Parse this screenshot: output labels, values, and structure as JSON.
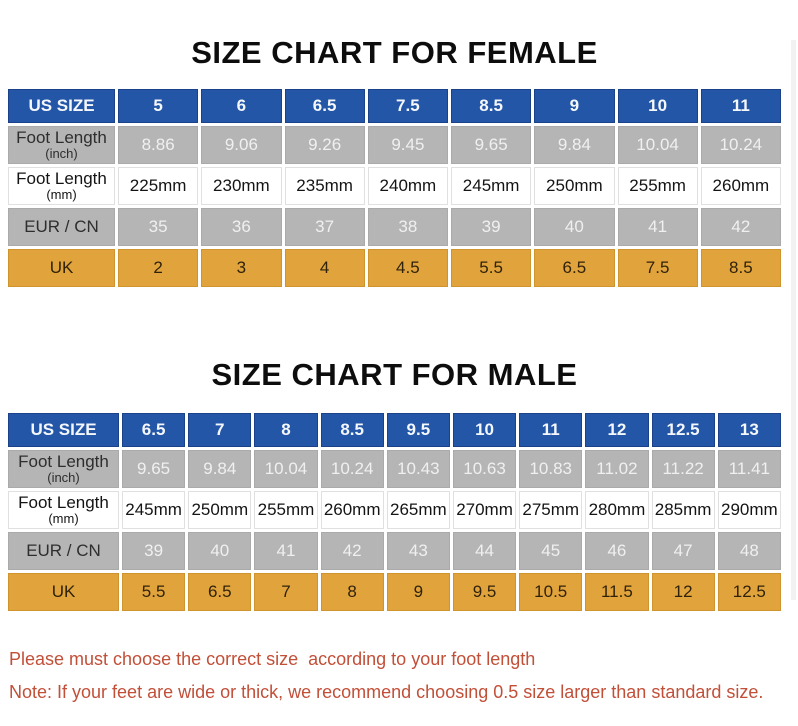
{
  "page": {
    "female_title": "SIZE CHART FOR FEMALE",
    "male_title": "SIZE CHART FOR MALE"
  },
  "colors": {
    "header_blue": "#2356a6",
    "row_gray": "#b5b5b5",
    "row_orange": "#e1a43d",
    "note_red": "#c24f38"
  },
  "tables": [
    {
      "id": "female",
      "header_label": "US SIZE",
      "us_sizes": [
        "5",
        "6",
        "6.5",
        "7.5",
        "8.5",
        "9",
        "10",
        "11"
      ],
      "rows": [
        {
          "label": "Foot Length",
          "sublabel": "(inch)",
          "style": "gray",
          "values": [
            "8.86",
            "9.06",
            "9.26",
            "9.45",
            "9.65",
            "9.84",
            "10.04",
            "10.24"
          ]
        },
        {
          "label": "Foot Length",
          "sublabel": "(mm)",
          "style": "white",
          "values": [
            "225mm",
            "230mm",
            "235mm",
            "240mm",
            "245mm",
            "250mm",
            "255mm",
            "260mm"
          ]
        },
        {
          "label": "EUR / CN",
          "sublabel": "",
          "style": "gray",
          "values": [
            "35",
            "36",
            "37",
            "38",
            "39",
            "40",
            "41",
            "42"
          ]
        },
        {
          "label": "UK",
          "sublabel": "",
          "style": "orange",
          "values": [
            "2",
            "3",
            "4",
            "4.5",
            "5.5",
            "6.5",
            "7.5",
            "8.5"
          ]
        }
      ]
    },
    {
      "id": "male",
      "header_label": "US SIZE",
      "us_sizes": [
        "6.5",
        "7",
        "8",
        "8.5",
        "9.5",
        "10",
        "11",
        "12",
        "12.5",
        "13"
      ],
      "rows": [
        {
          "label": "Foot Length",
          "sublabel": "(inch)",
          "style": "gray",
          "values": [
            "9.65",
            "9.84",
            "10.04",
            "10.24",
            "10.43",
            "10.63",
            "10.83",
            "11.02",
            "11.22",
            "11.41"
          ]
        },
        {
          "label": "Foot Length",
          "sublabel": "(mm)",
          "style": "white",
          "values": [
            "245mm",
            "250mm",
            "255mm",
            "260mm",
            "265mm",
            "270mm",
            "275mm",
            "280mm",
            "285mm",
            "290mm"
          ]
        },
        {
          "label": "EUR / CN",
          "sublabel": "",
          "style": "gray",
          "values": [
            "39",
            "40",
            "41",
            "42",
            "43",
            "44",
            "45",
            "46",
            "47",
            "48"
          ]
        },
        {
          "label": "UK",
          "sublabel": "",
          "style": "orange",
          "values": [
            "5.5",
            "6.5",
            "7",
            "8",
            "9",
            "9.5",
            "10.5",
            "11.5",
            "12",
            "12.5"
          ]
        }
      ]
    }
  ],
  "notes": {
    "line1": "Please must choose the correct size  according to your foot length",
    "line2": "Note: If your feet are wide or thick, we recommend choosing 0.5 size larger than standard size."
  }
}
